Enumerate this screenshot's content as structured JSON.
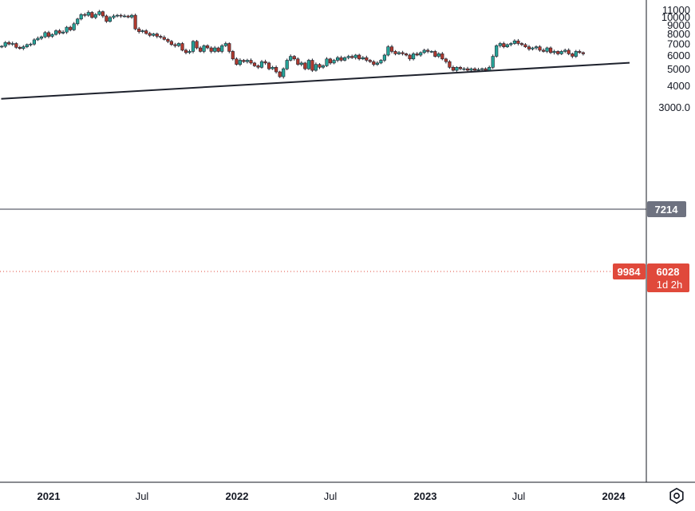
{
  "chart_data": {
    "type": "candlestick",
    "y_axis": {
      "ticks": [
        11000,
        10000,
        9000,
        8000,
        7000,
        6000,
        5000,
        4000,
        3000
      ],
      "tick_labels": [
        "11000",
        "10000",
        "9000",
        "8000",
        "7000",
        "6000",
        "5000",
        "4000",
        "3000.0"
      ],
      "scale": "log"
    },
    "x_axis": {
      "ticks": [
        {
          "label": "2021",
          "bold": true,
          "date": "2021-01-01"
        },
        {
          "label": "Jul",
          "bold": false,
          "date": "2021-07-01"
        },
        {
          "label": "2022",
          "bold": true,
          "date": "2022-01-01"
        },
        {
          "label": "Jul",
          "bold": false,
          "date": "2022-07-01"
        },
        {
          "label": "2023",
          "bold": true,
          "date": "2023-01-01"
        },
        {
          "label": "Jul",
          "bold": false,
          "date": "2023-07-01"
        },
        {
          "label": "2024",
          "bold": true,
          "date": "2024-01-01"
        }
      ]
    },
    "resistance_level": 7214,
    "trendline": {
      "start": {
        "date": "2020-10-01",
        "price": 3350
      },
      "end": {
        "date": "2024-02-01",
        "price": 5420
      }
    },
    "tags": {
      "resistance": "7214",
      "left_value": "9984",
      "last_price": "6028",
      "countdown": "1d 2h"
    },
    "last_price": 6028,
    "colors": {
      "up": "#26a69a",
      "down": "#b03a2e",
      "last_tag": "#e0493b",
      "level_tag": "#6e7280"
    },
    "candles_start_date": "2020-10-02",
    "candle_interval_days": 7,
    "closes": [
      6750,
      7100,
      6950,
      7000,
      6650,
      6550,
      6700,
      6900,
      6950,
      7350,
      7500,
      7650,
      8100,
      7700,
      7900,
      8300,
      8050,
      8150,
      8700,
      8400,
      9100,
      9700,
      10300,
      10200,
      10600,
      9900,
      10300,
      10700,
      10100,
      9400,
      9900,
      10100,
      10200,
      10100,
      10100,
      9950,
      10200,
      8500,
      8200,
      8300,
      8000,
      7800,
      7950,
      7700,
      7600,
      7400,
      7200,
      6900,
      6800,
      7000,
      6400,
      6200,
      6300,
      7200,
      6600,
      6300,
      6800,
      6600,
      6300,
      6600,
      6300,
      6800,
      7000,
      6300,
      5700,
      5300,
      5600,
      5500,
      5600,
      5400,
      5200,
      5100,
      5500,
      5400,
      5000,
      5100,
      4800,
      4500,
      5000,
      5600,
      5900,
      5700,
      5300,
      5400,
      5000,
      5600,
      4900,
      5300,
      5100,
      5200,
      5700,
      5400,
      5600,
      5800,
      5600,
      5800,
      5900,
      5800,
      6000,
      5700,
      5800,
      5600,
      5500,
      5300,
      5400,
      5600,
      6000,
      6700,
      6300,
      6100,
      6200,
      6100,
      6000,
      5700,
      6100,
      6000,
      6200,
      6400,
      6300,
      6300,
      5900,
      6100,
      5700,
      5500,
      5100,
      4900,
      5100,
      5000,
      5000,
      4900,
      5000,
      4900,
      4950,
      5000,
      4900,
      5100,
      5900,
      6800,
      7000,
      6700,
      6900,
      7000,
      7250,
      7000,
      6900,
      6700,
      6500,
      6600,
      6700,
      6400,
      6300,
      6600,
      6200,
      6300,
      6100,
      6300,
      6400,
      6100,
      5900,
      6300,
      6200,
      6100
    ]
  }
}
